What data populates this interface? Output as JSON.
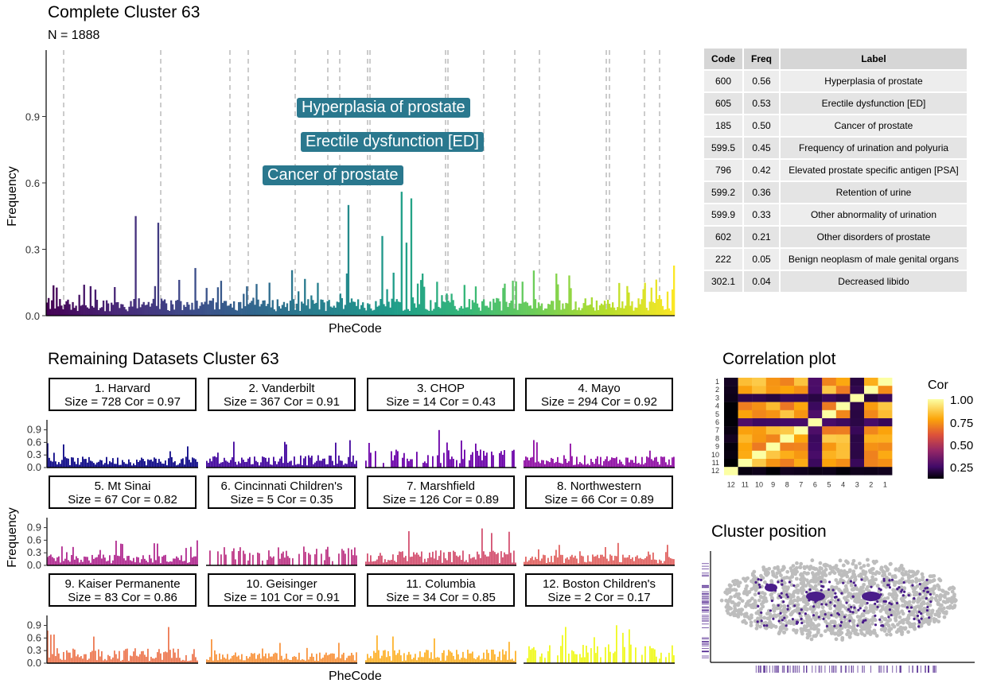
{
  "main": {
    "title": "Complete Cluster 63",
    "subtitle": "N = 1888",
    "xlabel": "PheCode",
    "ylabel": "Frequency"
  },
  "table": {
    "headers": [
      "Code",
      "Freq",
      "Label"
    ],
    "rows": [
      {
        "code": "600",
        "freq": "0.56",
        "label": "Hyperplasia of prostate"
      },
      {
        "code": "605",
        "freq": "0.53",
        "label": "Erectile dysfunction [ED]"
      },
      {
        "code": "185",
        "freq": "0.50",
        "label": "Cancer of prostate"
      },
      {
        "code": "599.5",
        "freq": "0.45",
        "label": "Frequency of urination and polyuria"
      },
      {
        "code": "796",
        "freq": "0.42",
        "label": "Elevated prostate specific antigen [PSA]"
      },
      {
        "code": "599.2",
        "freq": "0.36",
        "label": "Retention of urine"
      },
      {
        "code": "599.9",
        "freq": "0.33",
        "label": "Other abnormality of urination"
      },
      {
        "code": "602",
        "freq": "0.21",
        "label": "Other disorders of prostate"
      },
      {
        "code": "222",
        "freq": "0.05",
        "label": "Benign neoplasm of male genital organs"
      },
      {
        "code": "302.1",
        "freq": "0.04",
        "label": "Decreased libido"
      }
    ]
  },
  "remaining": {
    "title": "Remaining Datasets Cluster 63",
    "xlabel": "PheCode",
    "ylabel": "Frequency"
  },
  "correlation": {
    "title": "Correlation plot",
    "legend_title": "Cor",
    "legend_ticks": [
      "1.00",
      "0.75",
      "0.50",
      "0.25"
    ]
  },
  "position": {
    "title": "Cluster position"
  },
  "colors": {
    "accent_point": "#4a1d8a",
    "cloud": "#bdbdbd",
    "label_box": "#2a788e"
  },
  "chart_data": [
    {
      "type": "bar",
      "title": "Complete Cluster 63",
      "subtitle": "N = 1888",
      "xlabel": "PheCode",
      "ylabel": "Frequency",
      "ylim": [
        0,
        1.2
      ],
      "yticks": [
        "0.0",
        "0.3",
        "0.6",
        "0.9"
      ],
      "annotations": [
        {
          "text": "Hyperplasia of prostate",
          "y": 0.56
        },
        {
          "text": "Erectile dysfunction [ED]",
          "y": 0.53
        },
        {
          "text": "Cancer of prostate",
          "y": 0.5
        }
      ],
      "highlight_bars": [
        {
          "label": "Hyperplasia of prostate",
          "value": 0.56
        },
        {
          "label": "Erectile dysfunction [ED]",
          "value": 0.53
        },
        {
          "label": "Cancer of prostate",
          "value": 0.5
        },
        {
          "label": "Frequency of urination and polyuria",
          "value": 0.45
        },
        {
          "label": "Elevated prostate specific antigen [PSA]",
          "value": 0.42
        }
      ],
      "colormap": "viridis"
    },
    {
      "type": "bar",
      "facets": [
        {
          "label": "1. Harvard",
          "stats": "Size = 728 Cor = 0.97",
          "color": "#0d0887",
          "max": 0.6
        },
        {
          "label": "2. Vanderbilt",
          "stats": "Size = 367 Cor = 0.91",
          "color": "#41049d",
          "max": 0.7
        },
        {
          "label": "3. CHOP",
          "stats": "Size = 14 Cor = 0.43",
          "color": "#6a00a8",
          "max": 0.9
        },
        {
          "label": "4. Mayo",
          "stats": "Size = 294 Cor = 0.92",
          "color": "#8f0da4",
          "max": 0.7
        },
        {
          "label": "5. Mt Sinai",
          "stats": "Size = 67 Cor = 0.82",
          "color": "#b12a90",
          "max": 0.6
        },
        {
          "label": "6. Cincinnati Children's",
          "stats": "Size = 5 Cor = 0.35",
          "color": "#bd3786",
          "max": 0.4
        },
        {
          "label": "7. Marshfield",
          "stats": "Size = 126 Cor = 0.89",
          "color": "#d35171",
          "max": 0.9
        },
        {
          "label": "8. Northwestern",
          "stats": "Size = 66 Cor = 0.89",
          "color": "#e16462",
          "max": 0.6
        },
        {
          "label": "9. Kaiser Permanente",
          "stats": "Size = 83 Cor = 0.86",
          "color": "#ed7953",
          "max": 0.9
        },
        {
          "label": "10. Geisinger",
          "stats": "Size = 101 Cor = 0.91",
          "color": "#f89540",
          "max": 0.6
        },
        {
          "label": "11. Columbia",
          "stats": "Size = 34 Cor = 0.85",
          "color": "#fdb42f",
          "max": 0.8
        },
        {
          "label": "12. Boston Children's",
          "stats": "Size = 2 Cor = 0.17",
          "color": "#f0f921",
          "max": 1.0
        }
      ],
      "xlabel": "PheCode",
      "ylabel": "Frequency",
      "yticks": [
        "0.0",
        "0.3",
        "0.6",
        "0.9"
      ]
    },
    {
      "type": "heatmap",
      "title": "Correlation plot",
      "x_labels": [
        "12",
        "11",
        "10",
        "9",
        "8",
        "7",
        "6",
        "5",
        "4",
        "3",
        "2",
        "1"
      ],
      "y_labels": [
        "1",
        "2",
        "3",
        "4",
        "5",
        "6",
        "7",
        "8",
        "9",
        "10",
        "11",
        "12"
      ],
      "legend_title": "Cor",
      "legend_range": [
        0.17,
        1.0
      ]
    }
  ]
}
